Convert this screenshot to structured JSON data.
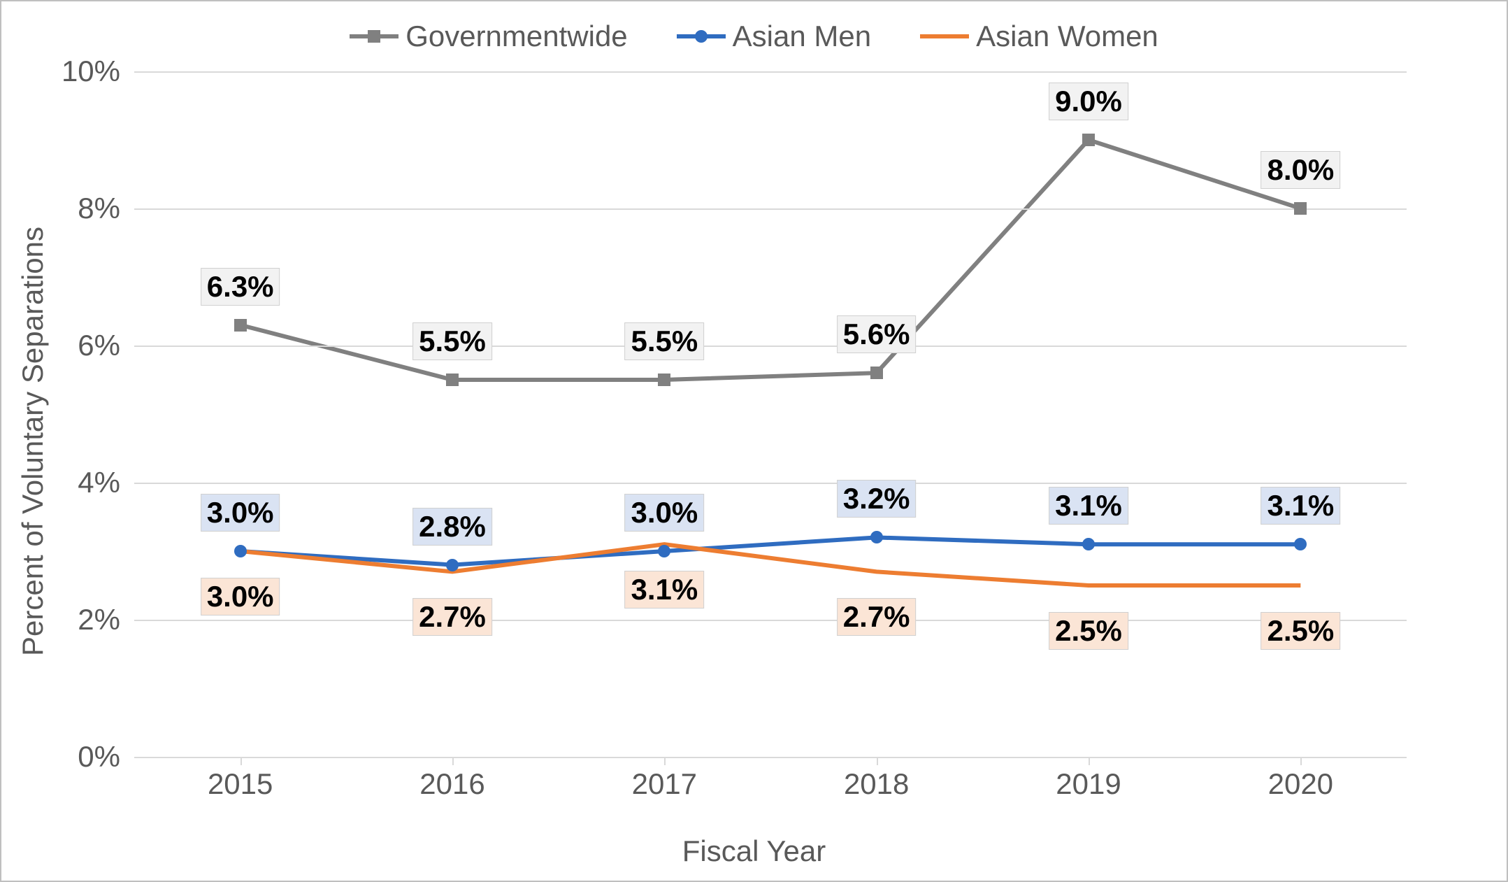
{
  "chart": {
    "type": "line",
    "background_color": "#ffffff",
    "border_color": "#bfbfbf",
    "grid_color": "#d9d9d9",
    "label_fontsize": 42,
    "axis_label_color": "#595959",
    "y_axis_title": "Percent of Voluntary Separations",
    "x_axis_title": "Fiscal Year",
    "ylim": [
      0,
      10
    ],
    "ytick_step": 2,
    "y_ticks": [
      {
        "value": 0,
        "label": "0%"
      },
      {
        "value": 2,
        "label": "2%"
      },
      {
        "value": 4,
        "label": "4%"
      },
      {
        "value": 6,
        "label": "6%"
      },
      {
        "value": 8,
        "label": "8%"
      },
      {
        "value": 10,
        "label": "10%"
      }
    ],
    "categories": [
      "2015",
      "2016",
      "2017",
      "2018",
      "2019",
      "2020"
    ],
    "series": [
      {
        "name": "Governmentwide",
        "color": "#808080",
        "marker": "square",
        "marker_size": 18,
        "line_width": 6,
        "label_bg": "#f2f2f2",
        "label_text_color": "#000000",
        "label_position": "above",
        "label_offset": 55,
        "values": [
          6.3,
          5.5,
          5.5,
          5.6,
          9.0,
          8.0
        ],
        "labels": [
          "6.3%",
          "5.5%",
          "5.5%",
          "5.6%",
          "9.0%",
          "8.0%"
        ]
      },
      {
        "name": "Asian Men",
        "color": "#2f6cc0",
        "marker": "circle",
        "marker_size": 18,
        "line_width": 6,
        "label_bg": "#dae3f3",
        "label_text_color": "#000000",
        "label_position": "above",
        "label_offset": 55,
        "values": [
          3.0,
          2.8,
          3.0,
          3.2,
          3.1,
          3.1
        ],
        "labels": [
          "3.0%",
          "2.8%",
          "3.0%",
          "3.2%",
          "3.1%",
          "3.1%"
        ]
      },
      {
        "name": "Asian Women",
        "color": "#ed7d31",
        "marker": "none",
        "line_width": 6,
        "label_bg": "#fbe5d6",
        "label_text_color": "#000000",
        "label_position": "below",
        "label_offset": 65,
        "values": [
          3.0,
          2.7,
          3.1,
          2.7,
          2.5,
          2.5
        ],
        "labels": [
          "3.0%",
          "2.7%",
          "3.1%",
          "2.7%",
          "2.5%",
          "2.5%"
        ]
      }
    ]
  }
}
